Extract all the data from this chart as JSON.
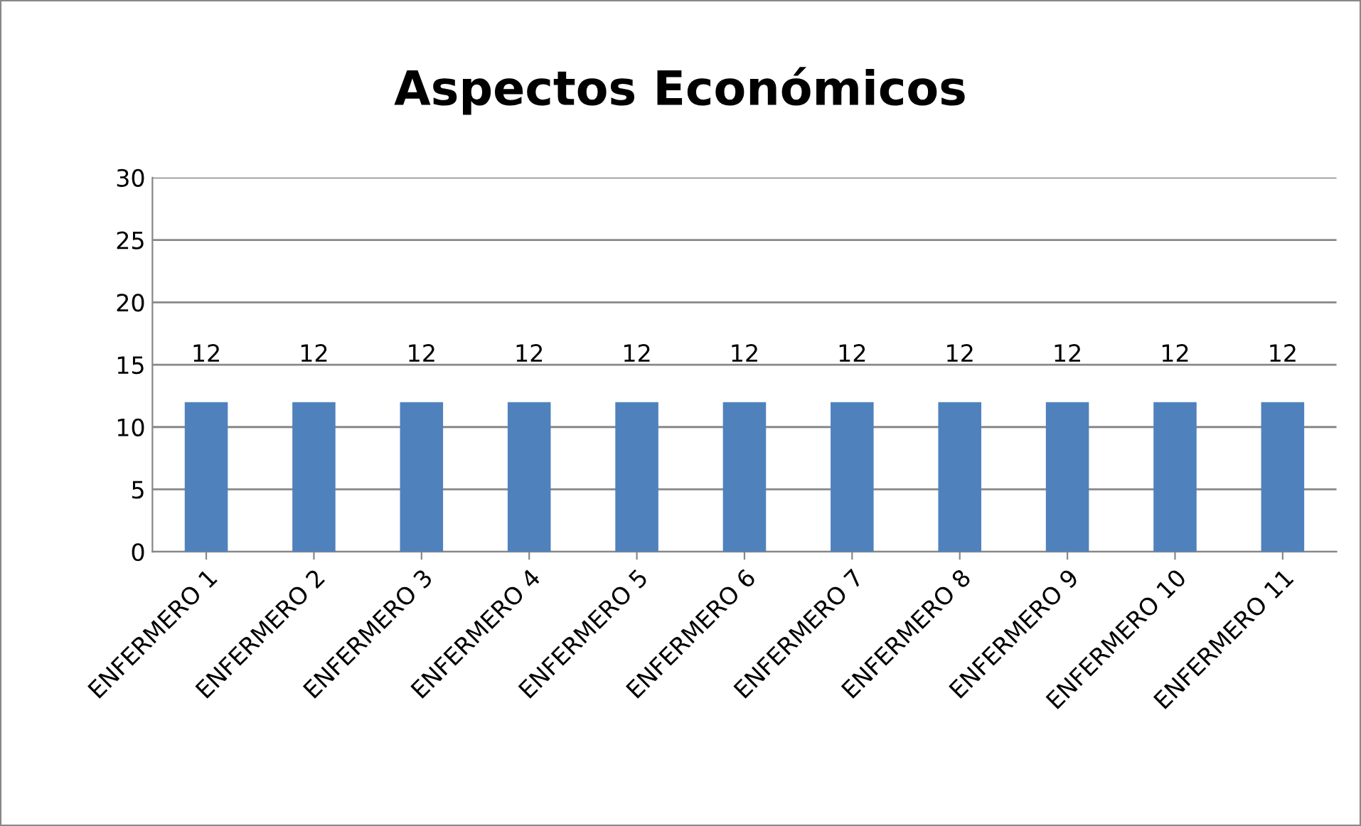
{
  "chart_data": {
    "type": "bar",
    "title": "Aspectos Económicos",
    "categories": [
      "ENFERMERO 1",
      "ENFERMERO 2",
      "ENFERMERO 3",
      "ENFERMERO 4",
      "ENFERMERO 5",
      "ENFERMERO 6",
      "ENFERMERO 7",
      "ENFERMERO 8",
      "ENFERMERO 9",
      "ENFERMERO 10",
      "ENFERMERO 11"
    ],
    "values": [
      12,
      12,
      12,
      12,
      12,
      12,
      12,
      12,
      12,
      12,
      12
    ],
    "color": "#4f81bd",
    "ylim": [
      0,
      30
    ],
    "yticks": [
      0,
      5,
      10,
      15,
      20,
      25,
      30
    ],
    "grid": "y",
    "data_labels": true
  }
}
